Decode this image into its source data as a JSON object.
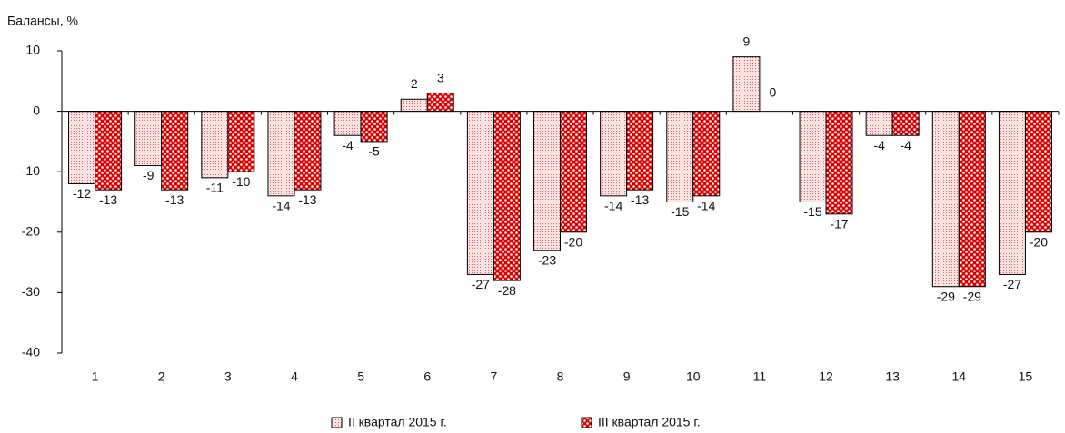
{
  "chart_data": {
    "type": "bar",
    "y_axis_label": "Балансы, %",
    "categories": [
      "1",
      "2",
      "3",
      "4",
      "5",
      "6",
      "7",
      "8",
      "9",
      "10",
      "11",
      "12",
      "13",
      "14",
      "15"
    ],
    "series": [
      {
        "name": "II квартал 2015 г.",
        "color": "#e06060",
        "values": [
          -12,
          -9,
          -11,
          -14,
          -4,
          2,
          -27,
          -23,
          -14,
          -15,
          9,
          -15,
          -4,
          -29,
          -27
        ]
      },
      {
        "name": "III квартал 2015 г.",
        "color": "#e00000",
        "values": [
          -13,
          -13,
          -10,
          -13,
          -5,
          3,
          -28,
          -20,
          -13,
          -14,
          0,
          -17,
          -4,
          -29,
          -20
        ]
      }
    ],
    "ylim": [
      -40,
      10
    ],
    "yticks": [
      10,
      0,
      -10,
      -20,
      -30,
      -40
    ],
    "grid": false,
    "legend": "bottom"
  }
}
